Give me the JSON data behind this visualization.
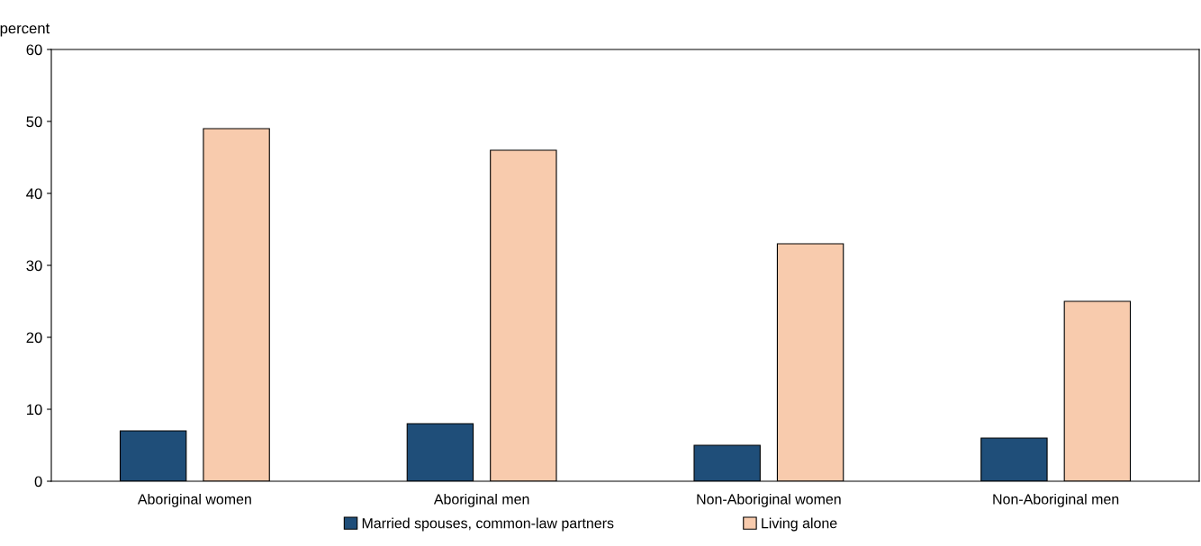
{
  "chart_data": {
    "type": "bar",
    "ylabel": "percent",
    "categories": [
      "Aboriginal women",
      "Aboriginal men",
      "Non-Aboriginal women",
      "Non-Aboriginal men"
    ],
    "series": [
      {
        "name": "Married spouses, common-law partners",
        "color": "#1f4e79",
        "values": [
          7,
          8,
          5,
          6
        ]
      },
      {
        "name": "Living alone",
        "color": "#f8cbad",
        "values": [
          49,
          46,
          33,
          25
        ]
      }
    ],
    "ylim": [
      0,
      60
    ],
    "yticks": [
      0,
      10,
      20,
      30,
      40,
      50,
      60
    ],
    "grid": false,
    "legend": "bottom"
  }
}
